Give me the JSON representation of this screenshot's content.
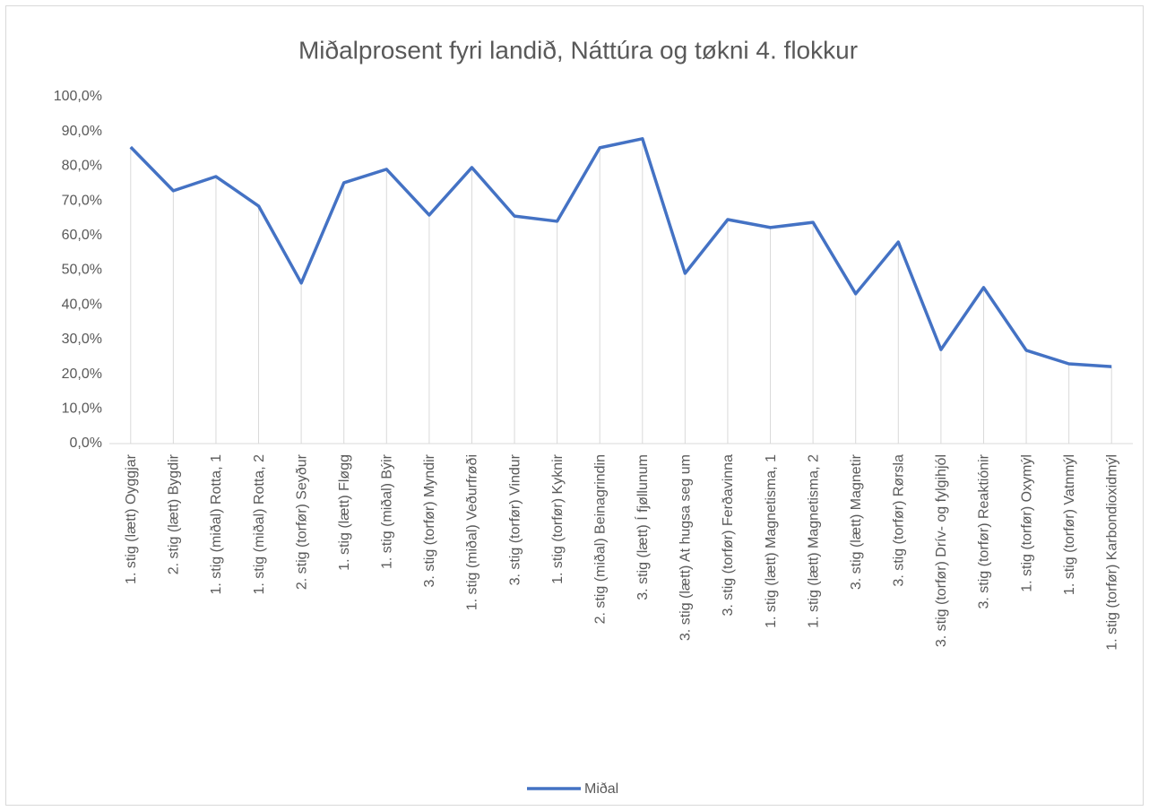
{
  "chart_data": {
    "type": "line",
    "title": "Miðalprosent fyri landið, Náttúra og tøkni 4. flokkur",
    "categories": [
      "1. stig (lætt) Oyggjar",
      "2. stig (lætt) Bygdir",
      "1. stig (miðal) Rotta, 1",
      "1. stig (miðal) Rotta, 2",
      "2. stig (torfør) Seyður",
      "1. stig (lætt) Fløgg",
      "1. stig (miðal) Býir",
      "3. stig (torfør) Myndir",
      "1. stig (miðal) Veðurfrøði",
      "3. stig (torfør) Vindur",
      "1. stig (torfør) Kyknir",
      "2. stig (miðal) Beinagrindin",
      "3. stig (lætt) Í fjøllunum",
      "3. stig (lætt) At hugsa seg um",
      "3. stig (torfør) Ferðavinna",
      "1. stig (lætt) Magnetisma, 1",
      "1. stig (lætt) Magnetisma, 2",
      "3. stig (lætt) Magnetir",
      "3. stig (torfør) Rørsla",
      "3. stig (torfør) Drív- og fylgihjól",
      "3. stig (torfør) Reaktiónir",
      "1. stig (torfør) Oxymýl",
      "1. stig (torfør) Vatnmýl",
      "1. stig (torfør) Karbondioxidmýl"
    ],
    "series": [
      {
        "name": "Miðal",
        "color": "#4472c4",
        "values": [
          85.5,
          72.9,
          77.0,
          68.5,
          46.3,
          75.2,
          79.1,
          65.9,
          79.6,
          65.6,
          64.1,
          85.3,
          87.9,
          49.1,
          64.6,
          62.3,
          63.8,
          43.2,
          58.1,
          27.1,
          45.0,
          26.9,
          23.0,
          22.2
        ]
      }
    ],
    "ylim": [
      0,
      100
    ],
    "yticks": [
      {
        "value": 0,
        "label": "0,0%"
      },
      {
        "value": 10,
        "label": "10,0%"
      },
      {
        "value": 20,
        "label": "20,0%"
      },
      {
        "value": 30,
        "label": "30,0%"
      },
      {
        "value": 40,
        "label": "40,0%"
      },
      {
        "value": 50,
        "label": "50,0%"
      },
      {
        "value": 60,
        "label": "60,0%"
      },
      {
        "value": 70,
        "label": "70,0%"
      },
      {
        "value": 80,
        "label": "80,0%"
      },
      {
        "value": 90,
        "label": "90,0%"
      },
      {
        "value": 100,
        "label": "100,0%"
      }
    ],
    "drop_lines": true,
    "legend": "bottom"
  }
}
